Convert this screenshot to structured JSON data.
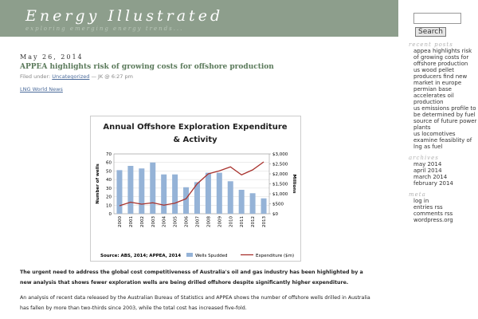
{
  "header": {
    "title": "Energy Illustrated",
    "tagline": "exploring emerging energy trends..."
  },
  "sidebar": {
    "search_button": "Search",
    "sections": [
      {
        "heading": "recent posts",
        "items": [
          "appea highlights risk of growing costs for offshore production",
          "us wood pellet producers find new market in europe",
          "permian base accelerates oil production",
          "us emissions profile to be determined by fuel source of future power plants",
          "us locomotives examine feasiblity of lng as fuel"
        ]
      },
      {
        "heading": "archives",
        "items": [
          "may 2014",
          "april 2014",
          "march 2014",
          "february 2014"
        ]
      },
      {
        "heading": "meta",
        "items": [
          "log in",
          "entries rss",
          "comments rss",
          "wordpress.org"
        ]
      }
    ]
  },
  "post": {
    "date": "May 26, 2014",
    "title": "APPEA highlights risk of growing costs for offshore production",
    "filed_label": "Filed under:",
    "category": "Uncategorized",
    "byline": "— JK @ 6:27 pm",
    "source_link": "LNG World News",
    "paragraphs": [
      "The urgent need to address the global cost competitiveness of Australia's oil and gas industry has been highlighted by a new analysis that shows fewer exploration wells are being drilled offshore despite significantly higher expenditure.",
      "An analysis of recent data released by the Australian Bureau of Statistics and APPEA shows the number of offshore wells drilled in Australia has fallen by more than two-thirds since 2003, while the total cost has increased five-fold."
    ]
  },
  "chart": {
    "type": "bar-line",
    "title": [
      "Annual Offshore Exploration Expenditure",
      "& Activity"
    ],
    "y_label": "Number of wells",
    "y2_label": "Millions",
    "source": "Source: ABS, 2014; APPEA, 2014",
    "categories": [
      "2000",
      "2001",
      "2002",
      "2003",
      "2004",
      "2005",
      "2006",
      "2007",
      "2008",
      "2009",
      "2010",
      "2011",
      "2012",
      "2013"
    ],
    "series": [
      {
        "name": "Wells Spudded",
        "type": "bar",
        "color": "#95b3d7",
        "values": [
          51,
          56,
          53,
          60,
          46,
          46,
          31,
          37,
          48,
          48,
          38,
          28,
          24,
          18
        ]
      },
      {
        "name": "Expenditure ($m)",
        "type": "line",
        "axis": "y2",
        "color": "#a8322d",
        "values": [
          400,
          580,
          480,
          550,
          430,
          530,
          750,
          1500,
          2000,
          2150,
          2350,
          1950,
          2200,
          2600
        ]
      }
    ],
    "ylim": [
      0,
      70
    ],
    "yticks": [
      0,
      10,
      20,
      30,
      40,
      50,
      60,
      70
    ],
    "y2lim": [
      0,
      3000
    ],
    "y2ticks": [
      {
        "value": 0,
        "label": "$0"
      },
      {
        "value": 500,
        "label": "$500"
      },
      {
        "value": 1000,
        "label": "$1,000"
      },
      {
        "value": 1500,
        "label": "$1,500"
      },
      {
        "value": 2000,
        "label": "$2,000"
      },
      {
        "value": 2500,
        "label": "$2,500"
      },
      {
        "value": 3000,
        "label": "$3,000"
      }
    ],
    "grid": true
  }
}
